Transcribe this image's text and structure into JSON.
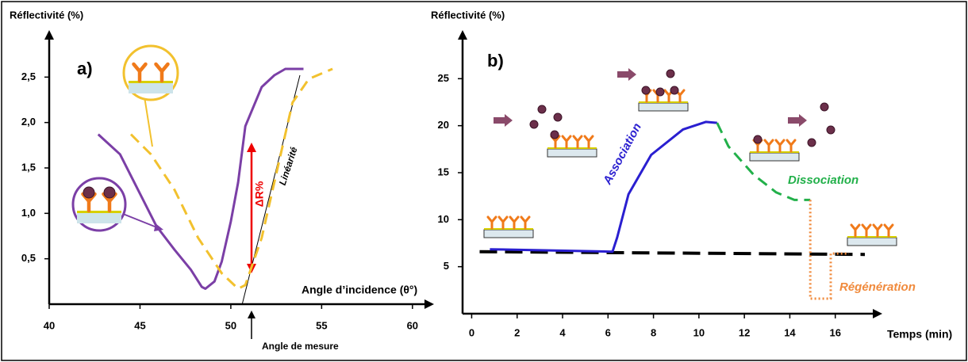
{
  "chart_data": [
    {
      "type": "line",
      "panel_label": "a)",
      "y_label": "Réflectivité (%)",
      "x_label": "Angle d’incidence (θ°)",
      "annotations": {
        "delta": "ΔR%",
        "linearity": "Linéarité",
        "measure_angle": "Angle de mesure"
      },
      "xlim": [
        40,
        61.1
      ],
      "xticks": [
        40,
        45,
        50,
        55,
        60
      ],
      "ylim": [
        0,
        3
      ],
      "yticks": [
        {
          "value": 0.5,
          "label": "0,5"
        },
        {
          "value": 1.0,
          "label": "1,0"
        },
        {
          "value": 1.5,
          "label": "1,5"
        },
        {
          "value": 2.0,
          "label": "2,0"
        },
        {
          "value": 2.5,
          "label": "2,5"
        }
      ],
      "series": [
        {
          "color": "#7b3fa6",
          "line_style": "solid",
          "x": [
            42.7,
            43.9,
            45.9,
            46.9,
            47.8,
            48.4,
            48.6,
            49.1,
            49.5,
            50.0,
            50.4,
            50.8,
            51.7,
            52.4,
            53.0,
            54.0
          ],
          "values": [
            1.87,
            1.65,
            0.86,
            0.6,
            0.38,
            0.19,
            0.17,
            0.25,
            0.47,
            0.91,
            1.34,
            1.96,
            2.39,
            2.52,
            2.59,
            2.59
          ]
        },
        {
          "color": "#f2c12e",
          "line_style": "dashed",
          "x": [
            44.5,
            45.6,
            46.9,
            48.2,
            49.5,
            50.4,
            50.8,
            51.7,
            52.6,
            53.4,
            54.3,
            55.6
          ],
          "values": [
            1.87,
            1.65,
            1.26,
            0.73,
            0.34,
            0.17,
            0.21,
            0.73,
            1.52,
            2.22,
            2.48,
            2.59
          ]
        }
      ]
    },
    {
      "type": "line",
      "panel_label": "b)",
      "y_label": "Réflectivité (%)",
      "x_label": "Temps (min)",
      "xlim": [
        -0.4,
        18
      ],
      "xticks": [
        0,
        2,
        4,
        6,
        8,
        10,
        12,
        14,
        16
      ],
      "ylim": [
        0,
        30
      ],
      "yticks": [
        5,
        10,
        15,
        20,
        25
      ],
      "series": [
        {
          "color": "#000000",
          "line_style": "longdash",
          "x": [
            0.35,
            17.3
          ],
          "values": [
            6.6,
            6.3
          ]
        },
        {
          "name": "Association",
          "color": "#2a1fd0",
          "line_style": "solid",
          "x": [
            0.8,
            6.2,
            6.4,
            6.9,
            7.9,
            9.3,
            10.3,
            10.8
          ],
          "values": [
            6.85,
            6.6,
            8.1,
            12.7,
            16.9,
            19.6,
            20.4,
            20.3
          ]
        },
        {
          "name": "Dissociation",
          "color": "#22b04a",
          "line_style": "dashed",
          "x": [
            10.8,
            11.3,
            12.4,
            13.4,
            14.2,
            14.9
          ],
          "values": [
            20.3,
            17.8,
            14.8,
            12.9,
            12.1,
            12.1
          ]
        },
        {
          "name": "Régénération",
          "color": "#f08a3c",
          "line_style": "dotted",
          "x": [
            14.9,
            14.9,
            15.8,
            15.8,
            16.6
          ],
          "values": [
            12.1,
            1.6,
            1.6,
            6.4,
            6.4
          ]
        }
      ]
    }
  ]
}
